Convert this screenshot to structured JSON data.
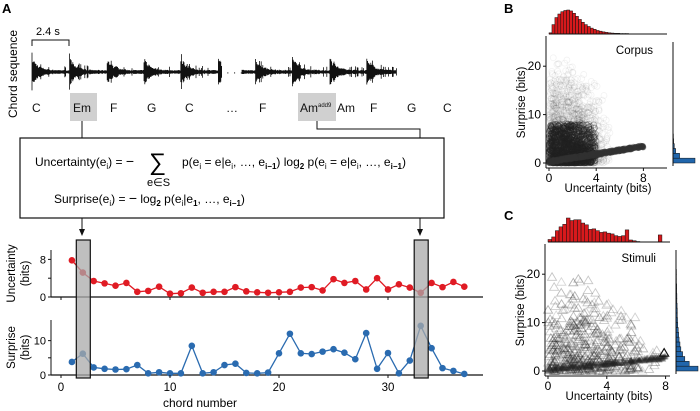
{
  "colors": {
    "uncertainty": "#e01b24",
    "surprise": "#2a6bb0",
    "highlight": "#aaaaaa",
    "hist_red": "#d7191c",
    "hist_blue": "#2166ac",
    "scatter": "#222222"
  },
  "panelA": {
    "label": "A",
    "ylabel_sequence": "Chord sequence",
    "scale_bar": "2.4 s",
    "chords": [
      "C",
      "Em",
      "F",
      "G",
      "C",
      "…",
      "F",
      "Am",
      "Am",
      "F",
      "G",
      "C"
    ],
    "chord_superscript": "add9",
    "highlighted_chords": [
      "Em",
      "Am add9"
    ],
    "ellipsis_wave": "· · ·",
    "formula_uncertainty_lhs": "Uncertainty(e",
    "formula_uncertainty_text": "Uncertainty(eᵢ) = − ∑ p(eᵢ = e|eᵢ, …, eᵢ₋₁) log₂ p(eᵢ = e|eᵢ, …, eᵢ₋₁)",
    "formula_sum_sub": "e∈S",
    "formula_surprise_text": "Surprise(eᵢ) = − log₂ p(eᵢ|e₁, …, eᵢ₋₁)"
  },
  "chart_data": [
    {
      "type": "line",
      "title": "",
      "xlabel": "chord number",
      "ylabel": "Uncertainty (bits)",
      "ylabel_lines": [
        "Uncertainty",
        "(bits)"
      ],
      "x": [
        1,
        2,
        3,
        4,
        5,
        6,
        7,
        8,
        9,
        10,
        11,
        12,
        13,
        14,
        15,
        16,
        17,
        18,
        19,
        20,
        21,
        22,
        23,
        24,
        25,
        26,
        27,
        28,
        29,
        30,
        31,
        32,
        33,
        34,
        35,
        36,
        37
      ],
      "values": [
        7.8,
        5.2,
        3.4,
        2.9,
        2.4,
        3.0,
        1.1,
        1.3,
        2.2,
        0.7,
        0.8,
        2.0,
        0.9,
        1.1,
        1.1,
        2.1,
        1.2,
        1.0,
        0.9,
        1.0,
        1.1,
        2.0,
        2.1,
        1.4,
        3.8,
        3.0,
        3.4,
        1.6,
        4.0,
        1.6,
        2.7,
        2.0,
        0.9,
        3.0,
        2.1,
        3.2,
        2.2
      ],
      "xlim": [
        -1,
        38
      ],
      "ylim": [
        0,
        10
      ],
      "yticks": [
        0,
        8
      ],
      "xticks": [
        0,
        10,
        20,
        30
      ],
      "highlight_x": [
        2,
        33
      ],
      "grid": false
    },
    {
      "type": "line",
      "xlabel": "chord number",
      "ylabel": "Surprise (bits)",
      "ylabel_lines": [
        "Surprise",
        "(bits)"
      ],
      "x": [
        1,
        2,
        3,
        4,
        5,
        6,
        7,
        8,
        9,
        10,
        11,
        12,
        13,
        14,
        15,
        16,
        17,
        18,
        19,
        20,
        21,
        22,
        23,
        24,
        25,
        26,
        27,
        28,
        29,
        30,
        31,
        32,
        33,
        34,
        35,
        36,
        37
      ],
      "values": [
        3.8,
        6.2,
        2.2,
        1.8,
        1.6,
        1.7,
        2.9,
        0.5,
        0.8,
        0.5,
        0.5,
        8.5,
        0.5,
        0.8,
        2.9,
        3.3,
        0.6,
        0.5,
        0.7,
        6.3,
        12.0,
        6.3,
        6.1,
        6.8,
        7.5,
        6.5,
        4.6,
        12.2,
        1.8,
        6.4,
        0.5,
        4.2,
        14.3,
        7.8,
        2.0,
        1.2,
        0.3
      ],
      "xlim": [
        -1,
        38
      ],
      "ylim": [
        0,
        16
      ],
      "yticks": [
        0,
        10
      ],
      "xticks": [
        0,
        10,
        20,
        30
      ],
      "highlight_x": [
        2,
        33
      ],
      "grid": false
    },
    {
      "type": "scatter",
      "panel": "B",
      "annotation": "Corpus",
      "xlabel": "Uncertainty (bits)",
      "ylabel": "Surprise (bits)",
      "xlim": [
        0,
        10
      ],
      "ylim": [
        0,
        25
      ],
      "xticks": [
        0,
        4,
        8
      ],
      "yticks": [
        0,
        10,
        20
      ],
      "marker": "circle",
      "description": "dense cloud of points concentrated at uncertainty 1-4 bits, surprise 0-8 bits, extending up to ~23 bits surprise and ~9 bits uncertainty",
      "x_hist": {
        "bin_width": 0.25,
        "counts": [
          5,
          40,
          70,
          85,
          95,
          100,
          102,
          98,
          88,
          75,
          62,
          50,
          40,
          32,
          25,
          20,
          15,
          12,
          9,
          7,
          5,
          4,
          3,
          3,
          2,
          2,
          2,
          1,
          1,
          1,
          1,
          1,
          1,
          1,
          1,
          1,
          0,
          0,
          0,
          0
        ]
      },
      "y_hist": {
        "bin_width": 1,
        "counts": [
          100,
          30,
          12,
          6,
          3,
          2,
          1,
          1,
          1,
          1,
          1,
          1,
          0.5,
          0.5,
          0.5,
          0.5,
          0.5,
          0.5,
          0.3,
          0.3,
          0.2,
          0.2,
          0.1,
          0.1,
          0.1
        ]
      }
    },
    {
      "type": "scatter",
      "panel": "C",
      "annotation": "Stimuli",
      "xlabel": "Uncertainty (bits)",
      "ylabel": "Surprise (bits)",
      "xlim": [
        0,
        8.3
      ],
      "ylim": [
        0,
        25
      ],
      "xticks": [
        0,
        4,
        8
      ],
      "yticks": [
        0,
        10,
        20
      ],
      "marker": "triangle",
      "description": "triangles spread over uncertainty 0-8 bits, surprise 0-22 bits; dense band near surprise 0-2",
      "x_hist": {
        "bin_width": 0.25,
        "counts": [
          10,
          20,
          45,
          60,
          70,
          95,
          85,
          88,
          88,
          75,
          68,
          50,
          52,
          45,
          38,
          40,
          35,
          32,
          25,
          22,
          25,
          48,
          8,
          5,
          2,
          1,
          1,
          1,
          1,
          1,
          28
        ]
      },
      "y_hist": {
        "bin_width": 1,
        "counts": [
          100,
          60,
          40,
          30,
          22,
          18,
          14,
          12,
          10,
          8,
          7,
          6,
          6,
          5,
          4,
          4,
          3,
          3,
          2,
          2,
          2,
          1,
          1
        ]
      }
    }
  ],
  "panelB": {
    "label": "B",
    "annotation": "Corpus"
  },
  "panelC": {
    "label": "C",
    "annotation": "Stimuli"
  }
}
